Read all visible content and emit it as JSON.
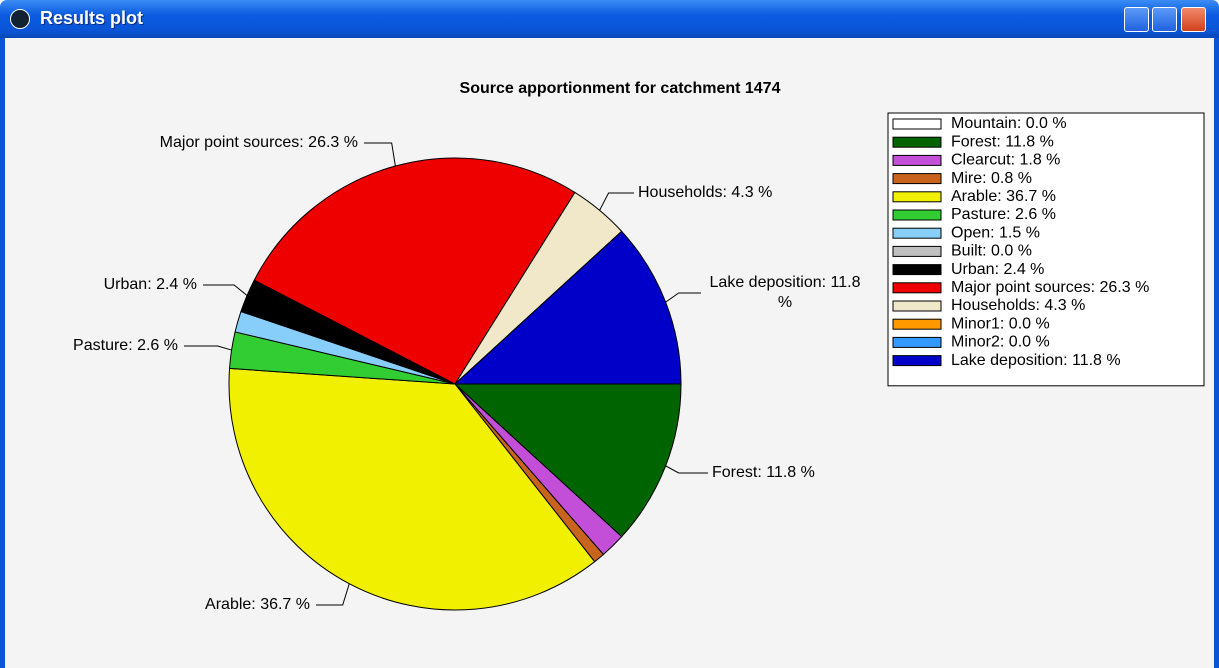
{
  "window": {
    "title": "Results plot"
  },
  "chart_data": {
    "type": "pie",
    "title": "Source apportionment for catchment 1474",
    "categories": [
      "Mountain",
      "Forest",
      "Clearcut",
      "Mire",
      "Arable",
      "Pasture",
      "Open",
      "Built",
      "Urban",
      "Major point sources",
      "Households",
      "Minor1",
      "Minor2",
      "Lake deposition"
    ],
    "values": [
      0,
      11.8,
      1.8,
      0.8,
      36.7,
      2.6,
      1.5,
      0,
      2.4,
      26.3,
      4.3,
      0,
      0,
      11.8
    ],
    "value_labels": [
      "Mountain: 0.0 %",
      "Forest: 11.8 %",
      "Clearcut: 1.8 %",
      "Mire: 0.8 %",
      "Arable: 36.7 %",
      "Pasture: 2.6 %",
      "Open: 1.5 %",
      "Built: 0.0 %",
      "Urban: 2.4 %",
      "Major point sources: 26.3 %",
      "Households: 4.3 %",
      "Minor1: 0.0 %",
      "Minor2: 0.0 %",
      "Lake deposition: 11.8 %"
    ],
    "slice_labels": [
      null,
      "Forest: 11.8 %",
      null,
      null,
      "Arable: 36.7 %",
      "Pasture: 2.6 %",
      null,
      null,
      "Urban: 2.4 %",
      "Major point sources: 26.3 %",
      "Households: 4.3 %",
      null,
      null,
      "Lake deposition: 11.8 %"
    ],
    "colors": [
      "#ffffff",
      "#006400",
      "#c34fd8",
      "#c8641e",
      "#f0f000",
      "#32cd32",
      "#87cefa",
      "#c0c0c0",
      "#000000",
      "#ee0000",
      "#f0e8c8",
      "#ff9900",
      "#3399ff",
      "#0000c8"
    ],
    "legend": "upper right"
  }
}
